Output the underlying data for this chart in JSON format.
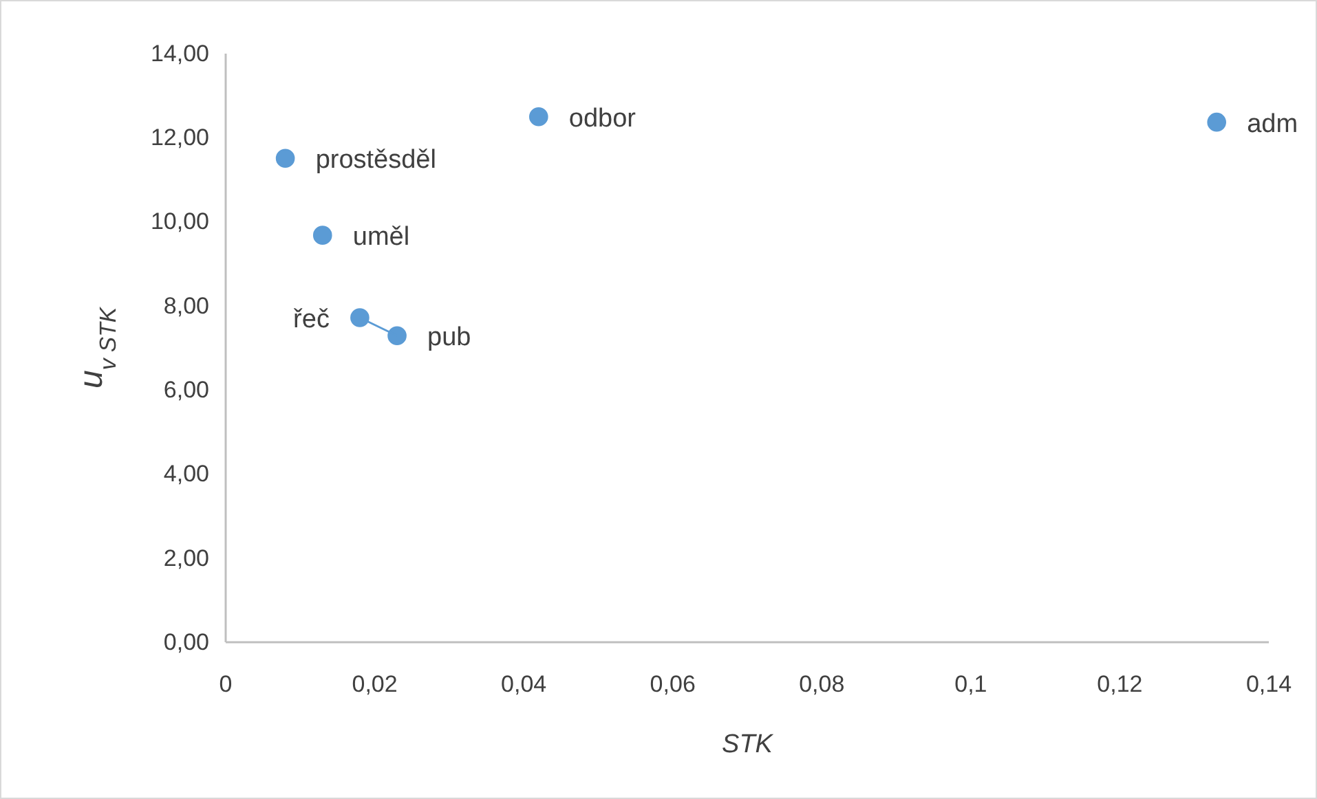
{
  "chart_data": {
    "type": "scatter",
    "xlabel": "STK",
    "ylabel": "u$_{v STK}$",
    "xlim": [
      0,
      0.14
    ],
    "xticks": [
      0,
      {
        "value": 0.02,
        "label": "0,02"
      },
      {
        "value": 0.04,
        "label": "0,04"
      },
      {
        "value": 0.06,
        "label": "0,06"
      },
      {
        "value": 0.08,
        "label": "0,08"
      },
      {
        "value": 0.1,
        "label": "0,1"
      },
      {
        "value": 0.12,
        "label": "0,12"
      },
      {
        "value": 0.14,
        "label": "0,14"
      }
    ],
    "ylim": [
      0,
      14
    ],
    "yticks": [
      {
        "value": 0,
        "label": "0,00"
      },
      {
        "value": 2,
        "label": "2,00"
      },
      {
        "value": 4,
        "label": "4,00"
      },
      {
        "value": 6,
        "label": "6,00"
      },
      {
        "value": 8,
        "label": "8,00"
      },
      {
        "value": 10,
        "label": "10,00"
      },
      {
        "value": 12,
        "label": "12,00"
      },
      {
        "value": 14,
        "label": "14,00"
      }
    ],
    "grid": false,
    "marker": "circle",
    "series": [
      {
        "color": "#5b9bd5",
        "x": [
          0.008,
          0.013,
          0.018,
          0.023,
          0.042,
          0.133
        ],
        "values": [
          11.51,
          9.68,
          7.72,
          7.29,
          12.5,
          12.37
        ]
      },
      {
        "type": "line",
        "color": "#5b9bd5",
        "marker": "none",
        "x": [
          0.018,
          0.023
        ],
        "values": [
          7.72,
          7.29
        ]
      }
    ],
    "annotations": [
      {
        "text": "prostěsděl",
        "x": 0.008,
        "y": 11.51
      },
      {
        "text": "uměl",
        "x": 0.013,
        "y": 9.68
      },
      {
        "text": "řeč",
        "x": 0.018,
        "y": 7.72
      },
      {
        "text": "pub",
        "x": 0.023,
        "y": 7.29
      },
      {
        "text": "odbor",
        "x": 0.042,
        "y": 12.5
      },
      {
        "text": "adm",
        "x": 0.133,
        "y": 12.37
      }
    ]
  }
}
